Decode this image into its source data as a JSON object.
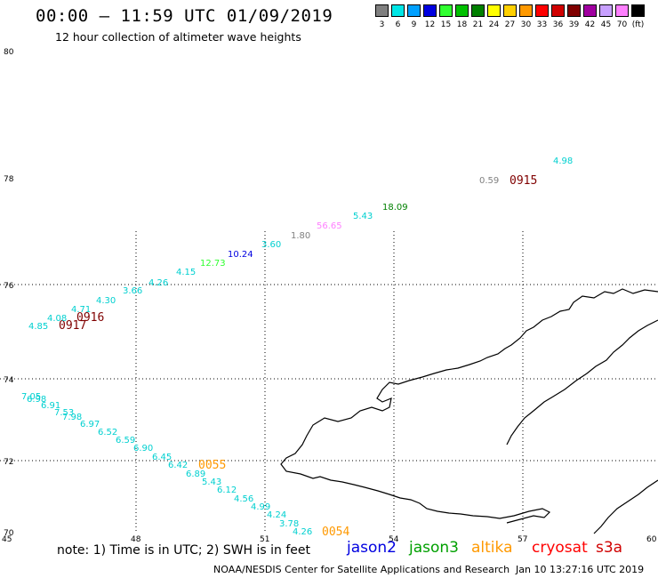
{
  "header": {
    "title": "00:00 – 11:59 UTC 01/09/2019",
    "subtitle": "12 hour collection of altimeter wave heights"
  },
  "legend": {
    "unit": "(ft)",
    "items": [
      {
        "label": "3",
        "color": "#808080"
      },
      {
        "label": "6",
        "color": "#00e6e6"
      },
      {
        "label": "9",
        "color": "#00a0ff"
      },
      {
        "label": "12",
        "color": "#0000e0"
      },
      {
        "label": "15",
        "color": "#30ff30"
      },
      {
        "label": "18",
        "color": "#00c000"
      },
      {
        "label": "21",
        "color": "#008000"
      },
      {
        "label": "24",
        "color": "#ffff00"
      },
      {
        "label": "27",
        "color": "#ffd000"
      },
      {
        "label": "30",
        "color": "#ff9900"
      },
      {
        "label": "33",
        "color": "#ff0000"
      },
      {
        "label": "36",
        "color": "#d00000"
      },
      {
        "label": "39",
        "color": "#800000"
      },
      {
        "label": "42",
        "color": "#a000a0"
      },
      {
        "label": "45",
        "color": "#c8a0ff"
      },
      {
        "label": "70",
        "color": "#ff80ff"
      },
      {
        "label": "(ft)",
        "color": "#000000"
      }
    ]
  },
  "axes": {
    "lat_labels": [
      "80",
      "78",
      "76",
      "74",
      "72",
      "70"
    ],
    "lon_labels": [
      "45",
      "48",
      "51",
      "54",
      "57",
      "60"
    ]
  },
  "tracks": {
    "pass_labels": [
      {
        "text": "0915",
        "color": "#800000"
      },
      {
        "text": "0916",
        "color": "#800000"
      },
      {
        "text": "0917",
        "color": "#800000"
      },
      {
        "text": "0055",
        "color": "#ff9900"
      },
      {
        "text": "0054",
        "color": "#ff9900"
      }
    ],
    "values": [
      {
        "text": "4.98",
        "color": "#00d0d0"
      },
      {
        "text": "0.59",
        "color": "#808080"
      },
      {
        "text": "18.09",
        "color": "#008000"
      },
      {
        "text": "5.43",
        "color": "#00d0d0"
      },
      {
        "text": "56.65",
        "color": "#ff80ff"
      },
      {
        "text": "1.80",
        "color": "#808080"
      },
      {
        "text": "3.60",
        "color": "#00d0d0"
      },
      {
        "text": "10.24",
        "color": "#0000e0"
      },
      {
        "text": "12.73",
        "color": "#30ff30"
      },
      {
        "text": "4.15",
        "color": "#00d0d0"
      },
      {
        "text": "4.26",
        "color": "#00d0d0"
      },
      {
        "text": "3.66",
        "color": "#00d0d0"
      },
      {
        "text": "4.30",
        "color": "#00d0d0"
      },
      {
        "text": "4.71",
        "color": "#00d0d0"
      },
      {
        "text": "4.08",
        "color": "#00d0d0"
      },
      {
        "text": "4.85",
        "color": "#00d0d0"
      },
      {
        "text": "7.05",
        "color": "#00d0d0"
      },
      {
        "text": "6.98",
        "color": "#00d0d0"
      },
      {
        "text": "6.91",
        "color": "#00d0d0"
      },
      {
        "text": "7.53",
        "color": "#00d0d0"
      },
      {
        "text": "7.98",
        "color": "#00d0d0"
      },
      {
        "text": "6.97",
        "color": "#00d0d0"
      },
      {
        "text": "6.52",
        "color": "#00d0d0"
      },
      {
        "text": "6.59",
        "color": "#00d0d0"
      },
      {
        "text": "6.90",
        "color": "#00d0d0"
      },
      {
        "text": "6.45",
        "color": "#00d0d0"
      },
      {
        "text": "6.42",
        "color": "#00d0d0"
      },
      {
        "text": "6.89",
        "color": "#00d0d0"
      },
      {
        "text": "5.43",
        "color": "#00d0d0"
      },
      {
        "text": "6.12",
        "color": "#00d0d0"
      },
      {
        "text": "4.56",
        "color": "#00d0d0"
      },
      {
        "text": "4.99",
        "color": "#00d0d0"
      },
      {
        "text": "4.24",
        "color": "#00d0d0"
      },
      {
        "text": "3.78",
        "color": "#00d0d0"
      },
      {
        "text": "4.26",
        "color": "#00d0d0"
      }
    ]
  },
  "footer": {
    "note": "note: 1) Time is in UTC; 2) SWH is in feet",
    "satellites": [
      {
        "name": "jason2",
        "color": "#0000e0"
      },
      {
        "name": "jason3",
        "color": "#00a000"
      },
      {
        "name": "altika",
        "color": "#ff9900"
      },
      {
        "name": "cryosat",
        "color": "#ff0000"
      },
      {
        "name": "s3a",
        "color": "#d00000"
      }
    ],
    "credit": "NOAA/NESDIS Center for Satellite Applications and Research",
    "timestamp": "Jan 10 13:27:16 UTC 2019"
  }
}
